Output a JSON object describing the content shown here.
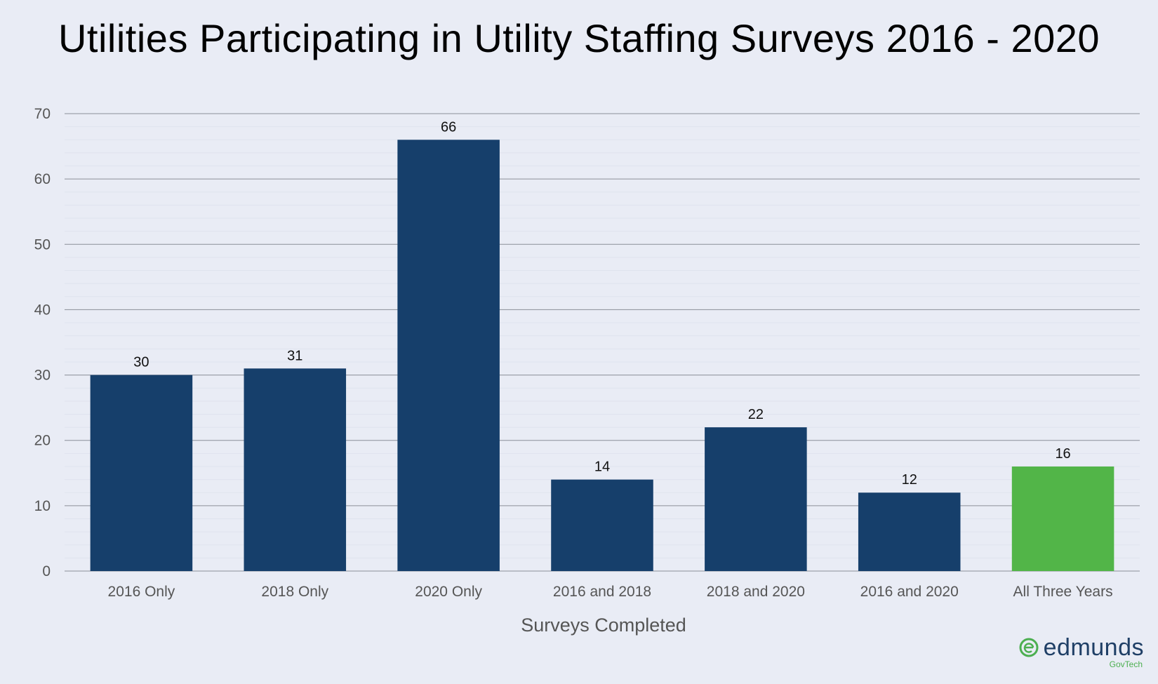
{
  "chart_data": {
    "type": "bar",
    "title": "Utilities Participating in Utility Staffing Surveys 2016 - 2020",
    "xlabel": "Surveys Completed",
    "ylabel": "",
    "ylim": [
      0,
      70
    ],
    "yticks": [
      0,
      10,
      20,
      30,
      40,
      50,
      60,
      70
    ],
    "categories": [
      "2016 Only",
      "2018 Only",
      "2020 Only",
      "2016 and 2018",
      "2018 and 2020",
      "2016 and 2020",
      "All Three Years"
    ],
    "values": [
      30,
      31,
      66,
      14,
      22,
      12,
      16
    ],
    "bar_colors": [
      "#163f6b",
      "#163f6b",
      "#163f6b",
      "#163f6b",
      "#163f6b",
      "#163f6b",
      "#52b548"
    ],
    "grid": true,
    "legend": "none"
  },
  "logo": {
    "word": "edmunds",
    "sub": "GovTech",
    "icon": "edmunds-e-icon",
    "color_primary": "#1f3f66",
    "color_accent": "#4caf50"
  }
}
